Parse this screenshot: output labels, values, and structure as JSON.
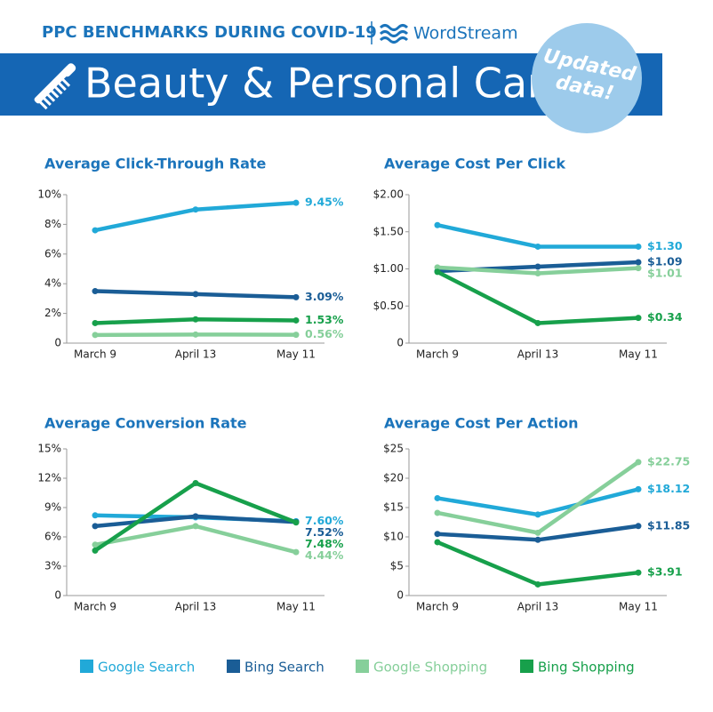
{
  "header": {
    "kicker": "PPC BENCHMARKS DURING COVID-19",
    "brand": "WordStream",
    "title": "Beauty & Personal Care",
    "badge": [
      "Updated",
      "data!"
    ]
  },
  "chart_data": [
    {
      "type": "line",
      "title": "Average Click-Through Rate",
      "categories": [
        "March 9",
        "April 13",
        "May 11"
      ],
      "ylim": [
        0,
        10
      ],
      "yticks": [
        0,
        {
          "value": 2,
          "label": "2%"
        },
        {
          "value": 4,
          "label": "4%"
        },
        {
          "value": 6,
          "label": "6%"
        },
        {
          "value": 8,
          "label": "8%"
        },
        {
          "value": 10,
          "label": "10%"
        }
      ],
      "series": [
        {
          "name": "Google Search",
          "color": "#21a9d8",
          "values": [
            7.6,
            9.0,
            9.45
          ],
          "value_labels": [
            null,
            null,
            "9.45%"
          ]
        },
        {
          "name": "Bing Search",
          "color": "#1a5d96",
          "values": [
            3.5,
            3.3,
            3.09
          ],
          "value_labels": [
            null,
            null,
            "3.09%"
          ]
        },
        {
          "name": "Google Shopping",
          "color": "#86cf9a",
          "values": [
            0.55,
            0.58,
            0.56
          ],
          "value_labels": [
            null,
            null,
            "0.56%"
          ]
        },
        {
          "name": "Bing Shopping",
          "color": "#17a04b",
          "values": [
            1.35,
            1.6,
            1.53
          ],
          "value_labels": [
            null,
            null,
            "1.53%"
          ]
        }
      ]
    },
    {
      "type": "line",
      "title": "Average Cost Per Click",
      "categories": [
        "March 9",
        "April 13",
        "May 11"
      ],
      "ylim": [
        0,
        2
      ],
      "yticks": [
        0,
        {
          "value": 0.5,
          "label": "$0.50"
        },
        {
          "value": 1,
          "label": "$1.00"
        },
        {
          "value": 1.5,
          "label": "$1.50"
        },
        {
          "value": 2,
          "label": "$2.00"
        }
      ],
      "series": [
        {
          "name": "Google Search",
          "color": "#21a9d8",
          "values": [
            1.59,
            1.3,
            1.3
          ],
          "value_labels": [
            null,
            null,
            "$1.30"
          ]
        },
        {
          "name": "Bing Search",
          "color": "#1a5d96",
          "values": [
            0.97,
            1.03,
            1.09
          ],
          "value_labels": [
            null,
            null,
            "$1.09"
          ]
        },
        {
          "name": "Google Shopping",
          "color": "#86cf9a",
          "values": [
            1.02,
            0.94,
            1.01
          ],
          "value_labels": [
            null,
            null,
            "$1.01"
          ]
        },
        {
          "name": "Bing Shopping",
          "color": "#17a04b",
          "values": [
            0.96,
            0.27,
            0.34
          ],
          "value_labels": [
            null,
            null,
            "$0.34"
          ]
        }
      ]
    },
    {
      "type": "line",
      "title": "Average Conversion Rate",
      "categories": [
        "March 9",
        "April 13",
        "May 11"
      ],
      "ylim": [
        0,
        15
      ],
      "yticks": [
        0,
        {
          "value": 3,
          "label": "3%"
        },
        {
          "value": 6,
          "label": "6%"
        },
        {
          "value": 9,
          "label": "9%"
        },
        {
          "value": 12,
          "label": "12%"
        },
        {
          "value": 15,
          "label": "15%"
        }
      ],
      "series": [
        {
          "name": "Google Search",
          "color": "#21a9d8",
          "values": [
            8.2,
            8.0,
            7.6
          ],
          "value_labels": [
            null,
            null,
            "7.60%"
          ]
        },
        {
          "name": "Bing Search",
          "color": "#1a5d96",
          "values": [
            7.1,
            8.1,
            7.52
          ],
          "value_labels": [
            null,
            null,
            "7.52%"
          ]
        },
        {
          "name": "Google Shopping",
          "color": "#86cf9a",
          "values": [
            5.2,
            7.1,
            4.44
          ],
          "value_labels": [
            null,
            null,
            "4.44%"
          ]
        },
        {
          "name": "Bing Shopping",
          "color": "#17a04b",
          "values": [
            4.6,
            11.5,
            7.48
          ],
          "value_labels": [
            null,
            null,
            "7.48%"
          ]
        }
      ]
    },
    {
      "type": "line",
      "title": "Average Cost Per Action",
      "categories": [
        "March 9",
        "April 13",
        "May 11"
      ],
      "ylim": [
        0,
        25
      ],
      "yticks": [
        0,
        {
          "value": 5,
          "label": "$5"
        },
        {
          "value": 10,
          "label": "$10"
        },
        {
          "value": 15,
          "label": "$15"
        },
        {
          "value": 20,
          "label": "$20"
        },
        {
          "value": 25,
          "label": "$25"
        }
      ],
      "series": [
        {
          "name": "Google Search",
          "color": "#21a9d8",
          "values": [
            16.6,
            13.8,
            18.12
          ],
          "value_labels": [
            null,
            null,
            "$18.12"
          ]
        },
        {
          "name": "Bing Search",
          "color": "#1a5d96",
          "values": [
            10.5,
            9.5,
            11.85
          ],
          "value_labels": [
            null,
            null,
            "$11.85"
          ]
        },
        {
          "name": "Google Shopping",
          "color": "#86cf9a",
          "values": [
            14.1,
            10.7,
            22.75
          ],
          "value_labels": [
            null,
            null,
            "$22.75"
          ]
        },
        {
          "name": "Bing Shopping",
          "color": "#17a04b",
          "values": [
            9.1,
            1.9,
            3.91
          ],
          "value_labels": [
            null,
            null,
            "$3.91"
          ]
        }
      ]
    }
  ]
}
